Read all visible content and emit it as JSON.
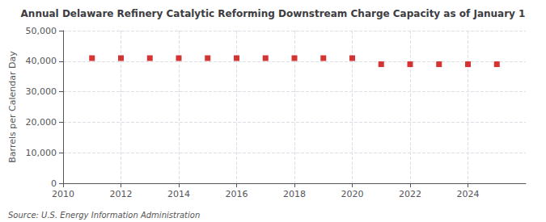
{
  "chart_data": {
    "type": "scatter",
    "title": "Annual Delaware Refinery Catalytic Reforming Downstream Charge Capacity as of January 1",
    "ylabel": "Barrels per Calendar Day",
    "annotation": "Source: U.S. Energy Information Administration",
    "x": [
      2011,
      2012,
      2013,
      2014,
      2015,
      2016,
      2017,
      2018,
      2019,
      2020,
      2021,
      2022,
      2023,
      2024,
      2025
    ],
    "values": [
      41000,
      41000,
      41000,
      41000,
      41000,
      41000,
      41000,
      41000,
      41000,
      41000,
      39000,
      39000,
      39000,
      39000,
      39000
    ],
    "color": "#cc0000",
    "marker": "square",
    "xlim": [
      2010,
      2026
    ],
    "ylim": [
      0,
      50000
    ],
    "xticks": [
      2010,
      2012,
      2014,
      2016,
      2018,
      2020,
      2022,
      2024
    ],
    "yticks": [
      {
        "value": 0,
        "label": "0"
      },
      {
        "value": 10000,
        "label": "10,000"
      },
      {
        "value": 20000,
        "label": "20,000"
      },
      {
        "value": 30000,
        "label": "30,000"
      },
      {
        "value": 40000,
        "label": "40,000"
      },
      {
        "value": 50000,
        "label": "50,000"
      }
    ],
    "grid": true
  }
}
